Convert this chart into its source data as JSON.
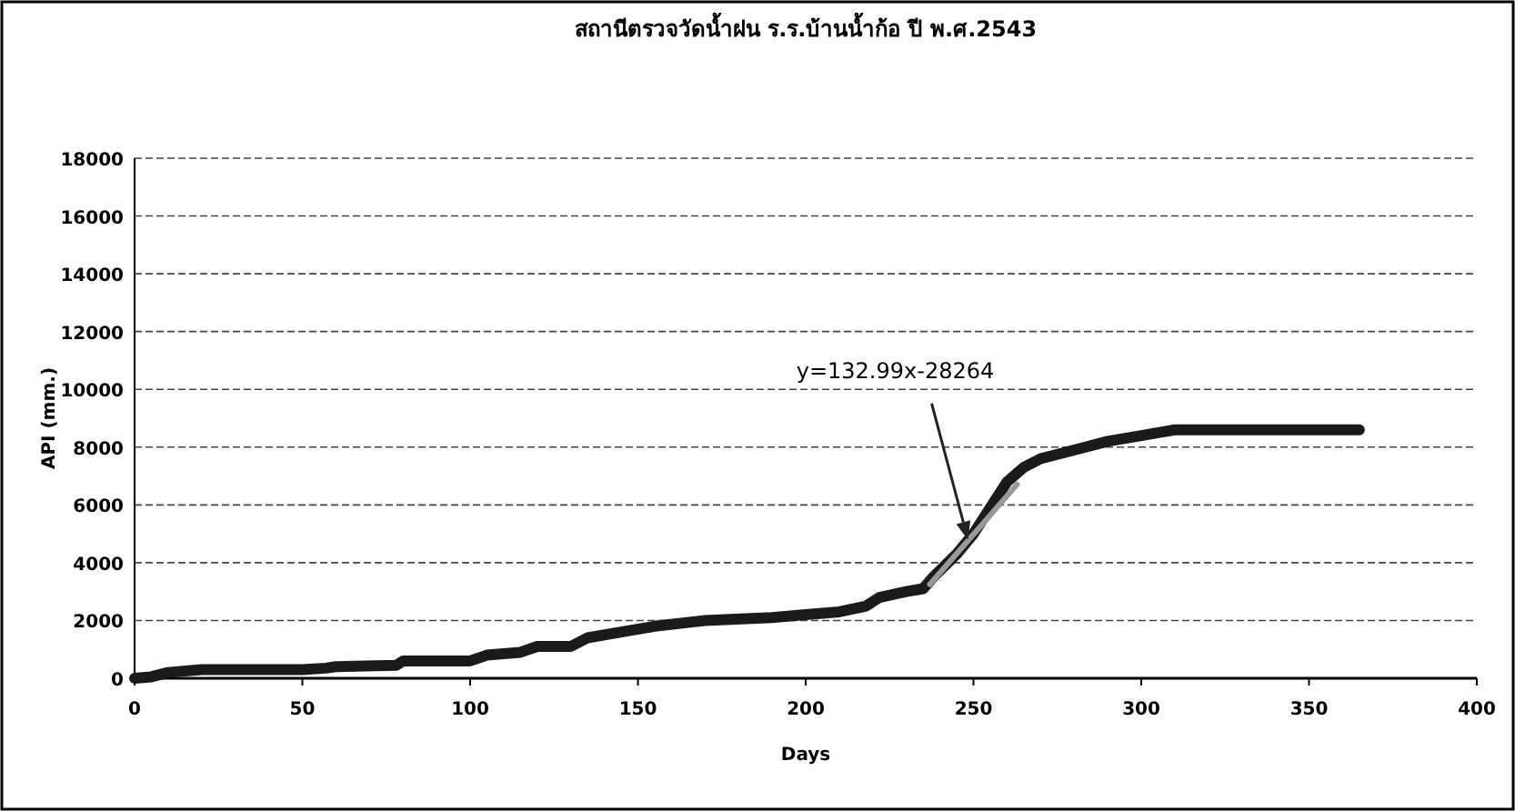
{
  "chart_data": {
    "type": "line",
    "title": "สถานีตรวจวัดน้ำฝน ร.ร.บ้านน้ำก้อ ปี พ.ศ.2543",
    "xlabel": "Days",
    "ylabel": "API (mm.)",
    "xlim": [
      0,
      400
    ],
    "xticks": [
      0,
      50,
      100,
      150,
      200,
      250,
      300,
      350,
      400
    ],
    "ylim": [
      0,
      18000
    ],
    "yticks": [
      0,
      2000,
      4000,
      6000,
      8000,
      10000,
      12000,
      14000,
      16000,
      18000
    ],
    "grid": "y",
    "line_style": "solid",
    "series": [
      {
        "color": "#1a1a1a",
        "x": [
          0,
          5,
          10,
          20,
          50,
          57,
          60,
          78,
          80,
          100,
          105,
          115,
          120,
          130,
          135,
          145,
          155,
          170,
          190,
          200,
          210,
          218,
          222,
          230,
          235,
          238,
          245,
          250,
          255,
          260,
          265,
          270,
          280,
          290,
          300,
          310,
          330,
          365
        ],
        "values": [
          0,
          50,
          200,
          300,
          300,
          350,
          400,
          450,
          600,
          600,
          800,
          900,
          1100,
          1100,
          1400,
          1600,
          1800,
          2000,
          2100,
          2200,
          2300,
          2500,
          2800,
          3000,
          3100,
          3500,
          4300,
          5000,
          5900,
          6800,
          7300,
          7600,
          7900,
          8200,
          8400,
          8600,
          8600,
          8600
        ]
      },
      {
        "type": "line",
        "color": "#9a9a9a",
        "x": [
          237,
          263
        ],
        "values": [
          3250,
          6710
        ]
      }
    ],
    "annotations": [
      "y=132.99x-28264"
    ]
  }
}
